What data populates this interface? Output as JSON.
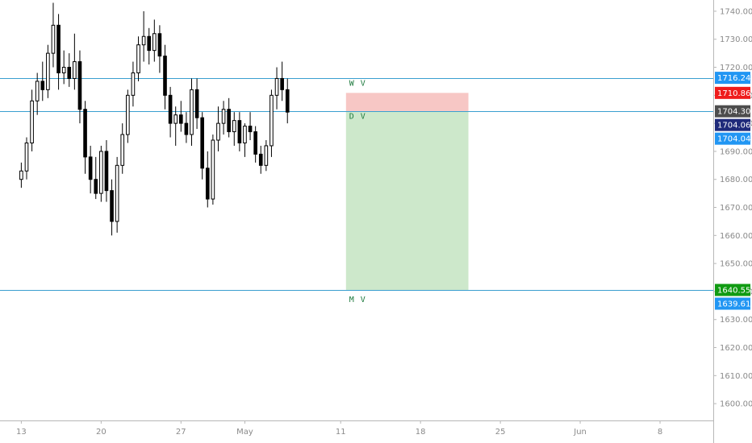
{
  "colors": {
    "background": "#ffffff",
    "grid_border": "#b7b7b7",
    "candle": "#000000",
    "level_line": "#3a9fd0",
    "stop_zone": "#f7c7c5",
    "target_zone": "#cde8cb",
    "zone_label": "#1e7a3e",
    "badge_blue": "#2196f3",
    "badge_red": "#ef1c1c",
    "badge_gray": "#4d4d4d",
    "badge_navy": "#1f2a7a",
    "badge_green": "#109b12"
  },
  "chart_data": {
    "type": "candlestick",
    "title": "",
    "xlabel": "",
    "ylabel": "",
    "y_range": [
      1594,
      1744
    ],
    "x_range": [
      -4,
      130
    ],
    "grid": false,
    "y_ticks": [
      "1740.00",
      "1730.00",
      "1720.00",
      "1710.00",
      "1700.00",
      "1690.00",
      "1680.00",
      "1670.00",
      "1660.00",
      "1650.00",
      "1640.00",
      "1630.00",
      "1620.00",
      "1610.00",
      "1600.00"
    ],
    "x_tick_labels": [
      {
        "label": "13",
        "bar": 0
      },
      {
        "label": "20",
        "bar": 15
      },
      {
        "label": "27",
        "bar": 30
      },
      {
        "label": "May",
        "bar": 42
      },
      {
        "label": "11",
        "bar": 60
      },
      {
        "label": "18",
        "bar": 75
      },
      {
        "label": "25",
        "bar": 90
      },
      {
        "label": "Jun",
        "bar": 105
      },
      {
        "label": "8",
        "bar": 120
      }
    ],
    "series": [
      {
        "type": "ohlc",
        "candles": [
          [
            1680,
            1686,
            1677,
            1683
          ],
          [
            1683,
            1695,
            1680,
            1693
          ],
          [
            1693,
            1712,
            1690,
            1708
          ],
          [
            1708,
            1718,
            1703,
            1715
          ],
          [
            1715,
            1722,
            1708,
            1712
          ],
          [
            1712,
            1728,
            1709,
            1725
          ],
          [
            1725,
            1743,
            1720,
            1735
          ],
          [
            1735,
            1739,
            1712,
            1718
          ],
          [
            1718,
            1726,
            1714,
            1720
          ],
          [
            1720,
            1725,
            1713,
            1716
          ],
          [
            1716,
            1732,
            1712,
            1722
          ],
          [
            1722,
            1726,
            1700,
            1705
          ],
          [
            1705,
            1708,
            1682,
            1688
          ],
          [
            1688,
            1692,
            1675,
            1680
          ],
          [
            1680,
            1688,
            1673,
            1675
          ],
          [
            1675,
            1692,
            1672,
            1690
          ],
          [
            1690,
            1694,
            1672,
            1676
          ],
          [
            1676,
            1680,
            1660,
            1665
          ],
          [
            1665,
            1688,
            1661,
            1685
          ],
          [
            1685,
            1700,
            1682,
            1696
          ],
          [
            1696,
            1712,
            1693,
            1710
          ],
          [
            1710,
            1722,
            1706,
            1718
          ],
          [
            1718,
            1731,
            1715,
            1728
          ],
          [
            1728,
            1740,
            1722,
            1731
          ],
          [
            1731,
            1734,
            1721,
            1726
          ],
          [
            1726,
            1737,
            1722,
            1732
          ],
          [
            1732,
            1735,
            1718,
            1724
          ],
          [
            1724,
            1728,
            1705,
            1710
          ],
          [
            1710,
            1713,
            1695,
            1700
          ],
          [
            1700,
            1706,
            1692,
            1703
          ],
          [
            1703,
            1708,
            1697,
            1700
          ],
          [
            1700,
            1704,
            1693,
            1696
          ],
          [
            1696,
            1716,
            1692,
            1712
          ],
          [
            1712,
            1716,
            1698,
            1702
          ],
          [
            1702,
            1704,
            1680,
            1684
          ],
          [
            1684,
            1690,
            1670,
            1673
          ],
          [
            1673,
            1696,
            1671,
            1694
          ],
          [
            1694,
            1706,
            1690,
            1700
          ],
          [
            1700,
            1708,
            1696,
            1705
          ],
          [
            1705,
            1709,
            1695,
            1697
          ],
          [
            1697,
            1704,
            1692,
            1701
          ],
          [
            1701,
            1704,
            1690,
            1693
          ],
          [
            1693,
            1700,
            1688,
            1699
          ],
          [
            1699,
            1704,
            1694,
            1697
          ],
          [
            1697,
            1699,
            1686,
            1689
          ],
          [
            1689,
            1692,
            1682,
            1685
          ],
          [
            1685,
            1694,
            1683,
            1692
          ],
          [
            1692,
            1712,
            1688,
            1710
          ],
          [
            1710,
            1720,
            1705,
            1716
          ],
          [
            1716,
            1722,
            1708,
            1712
          ],
          [
            1712,
            1716,
            1700,
            1704
          ]
        ]
      }
    ],
    "price_levels": [
      {
        "name": "upper-level",
        "value": 1716.24
      },
      {
        "name": "entry-level",
        "value": 1704.3
      },
      {
        "name": "target-level",
        "value": 1640.55
      }
    ],
    "zones": {
      "stop": {
        "top": 1710.86,
        "bottom": 1704.3,
        "start_bar": 61,
        "end_bar": 84
      },
      "target": {
        "top": 1704.3,
        "bottom": 1640.55,
        "start_bar": 61,
        "end_bar": 84
      }
    },
    "zone_labels": [
      {
        "text": "W V",
        "price": 1713.4,
        "bar": 61.6
      },
      {
        "text": "D V",
        "price": 1701.6,
        "bar": 61.6
      },
      {
        "text": "M V",
        "price": 1636.2,
        "bar": 61.6
      }
    ],
    "price_badges": [
      {
        "text": "1716.24",
        "value": 1716.24,
        "color": "#2196f3"
      },
      {
        "text": "1710.86",
        "value": 1710.86,
        "color": "#ef1c1c"
      },
      {
        "text": "1704.30",
        "value": 1704.3,
        "color": "#4d4d4d"
      },
      {
        "text": "1704.06",
        "value": 1704.06,
        "color": "#1f2a7a"
      },
      {
        "text": "1704.04",
        "value": 1704.04,
        "color": "#2196f3"
      },
      {
        "text": "1640.55",
        "value": 1640.55,
        "color": "#109b12"
      },
      {
        "text": "1639.61",
        "value": 1639.61,
        "color": "#2196f3"
      }
    ]
  }
}
